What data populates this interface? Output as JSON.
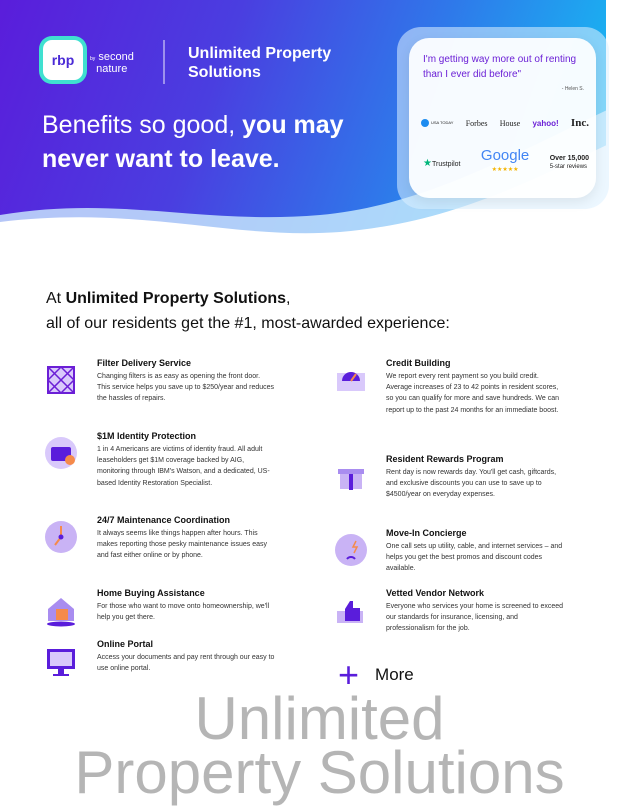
{
  "hero": {
    "logo_text": "rbp",
    "by_text": "by",
    "partner_line1": "second",
    "partner_line2": "nature",
    "brand_line1": "Unlimited Property",
    "brand_line2": "Solutions",
    "headline_light": "Benefits so good,",
    "headline_bold1": "you may",
    "headline_bold2": "never want to leave."
  },
  "testimonial": {
    "quote": "I'm getting way more out of renting than I ever did before\"",
    "author": "- Helen S.",
    "press": [
      "USA TODAY",
      "Forbes",
      "House",
      "yahoo!",
      "Inc."
    ],
    "trustpilot": "Trustpilot",
    "google": "Google",
    "google_stars": "★★★★★",
    "reviews_count": "Over 15,000",
    "reviews_label": "5-star reviews"
  },
  "intro": {
    "prefix": "At ",
    "company": "Unlimited Property Solutions",
    "suffix": ",",
    "line2": "all of our residents get the #1, most-awarded experience:"
  },
  "left_items": [
    {
      "title": "Filter Delivery Service",
      "desc": "Changing filters is as easy as opening the front door. This service helps you save up to $250/year and reduces the hassles of repairs.",
      "icon": "filter-icon"
    },
    {
      "title": "$1M Identity Protection",
      "desc": "1 in 4 Americans are victims of identity fraud. All adult leaseholders get $1M coverage backed by AIG, monitoring through IBM's Watson, and a dedicated, US-based Identity Restoration Specialist.",
      "icon": "id-badge-icon"
    },
    {
      "title": "24/7 Maintenance Coordination",
      "desc": "It always seems like things happen after hours. This makes reporting those pesky maintenance issues easy and fast either online or by phone.",
      "icon": "clock-icon"
    },
    {
      "title": "Home Buying Assistance",
      "desc": "For those who want to move onto homeownership, we'll help you get there.",
      "icon": "house-icon"
    },
    {
      "title": "Online Portal",
      "desc": "Access your documents and pay rent through our easy to use online portal.",
      "icon": "monitor-icon"
    }
  ],
  "right_items": [
    {
      "title": "Credit Building",
      "desc": "We report every rent payment so you build credit. Average increases of 23 to 42 points in resident scores, so you can qualify for more and save hundreds. We can report up to the past 24 months for an immediate boost.",
      "icon": "gauge-icon"
    },
    {
      "title": "Resident Rewards Program",
      "desc": "Rent day is now rewards day. You'll get cash, giftcards, and exclusive discounts you can use to save up to $4500/year on everyday expenses.",
      "icon": "gift-icon"
    },
    {
      "title": "Move-In Concierge",
      "desc": "One call sets up utility, cable, and internet services – and helps you get the best promos and discount codes available.",
      "icon": "utilities-icon"
    },
    {
      "title": "Vetted Vendor Network",
      "desc": "Everyone who services your home is screened to exceed our standards for insurance, licensing, and professionalism for the job.",
      "icon": "thumbs-up-icon"
    }
  ],
  "more": {
    "icon": "plus-icon",
    "label": "More"
  },
  "watermark": {
    "line1": "Unlimited",
    "line2": "Property Solutions"
  },
  "colors": {
    "brand_purple": "#5a1ddb",
    "cyan": "#12c6f4",
    "icon_lavender": "#c9b3f5",
    "accent_orange": "#f58a4b"
  }
}
